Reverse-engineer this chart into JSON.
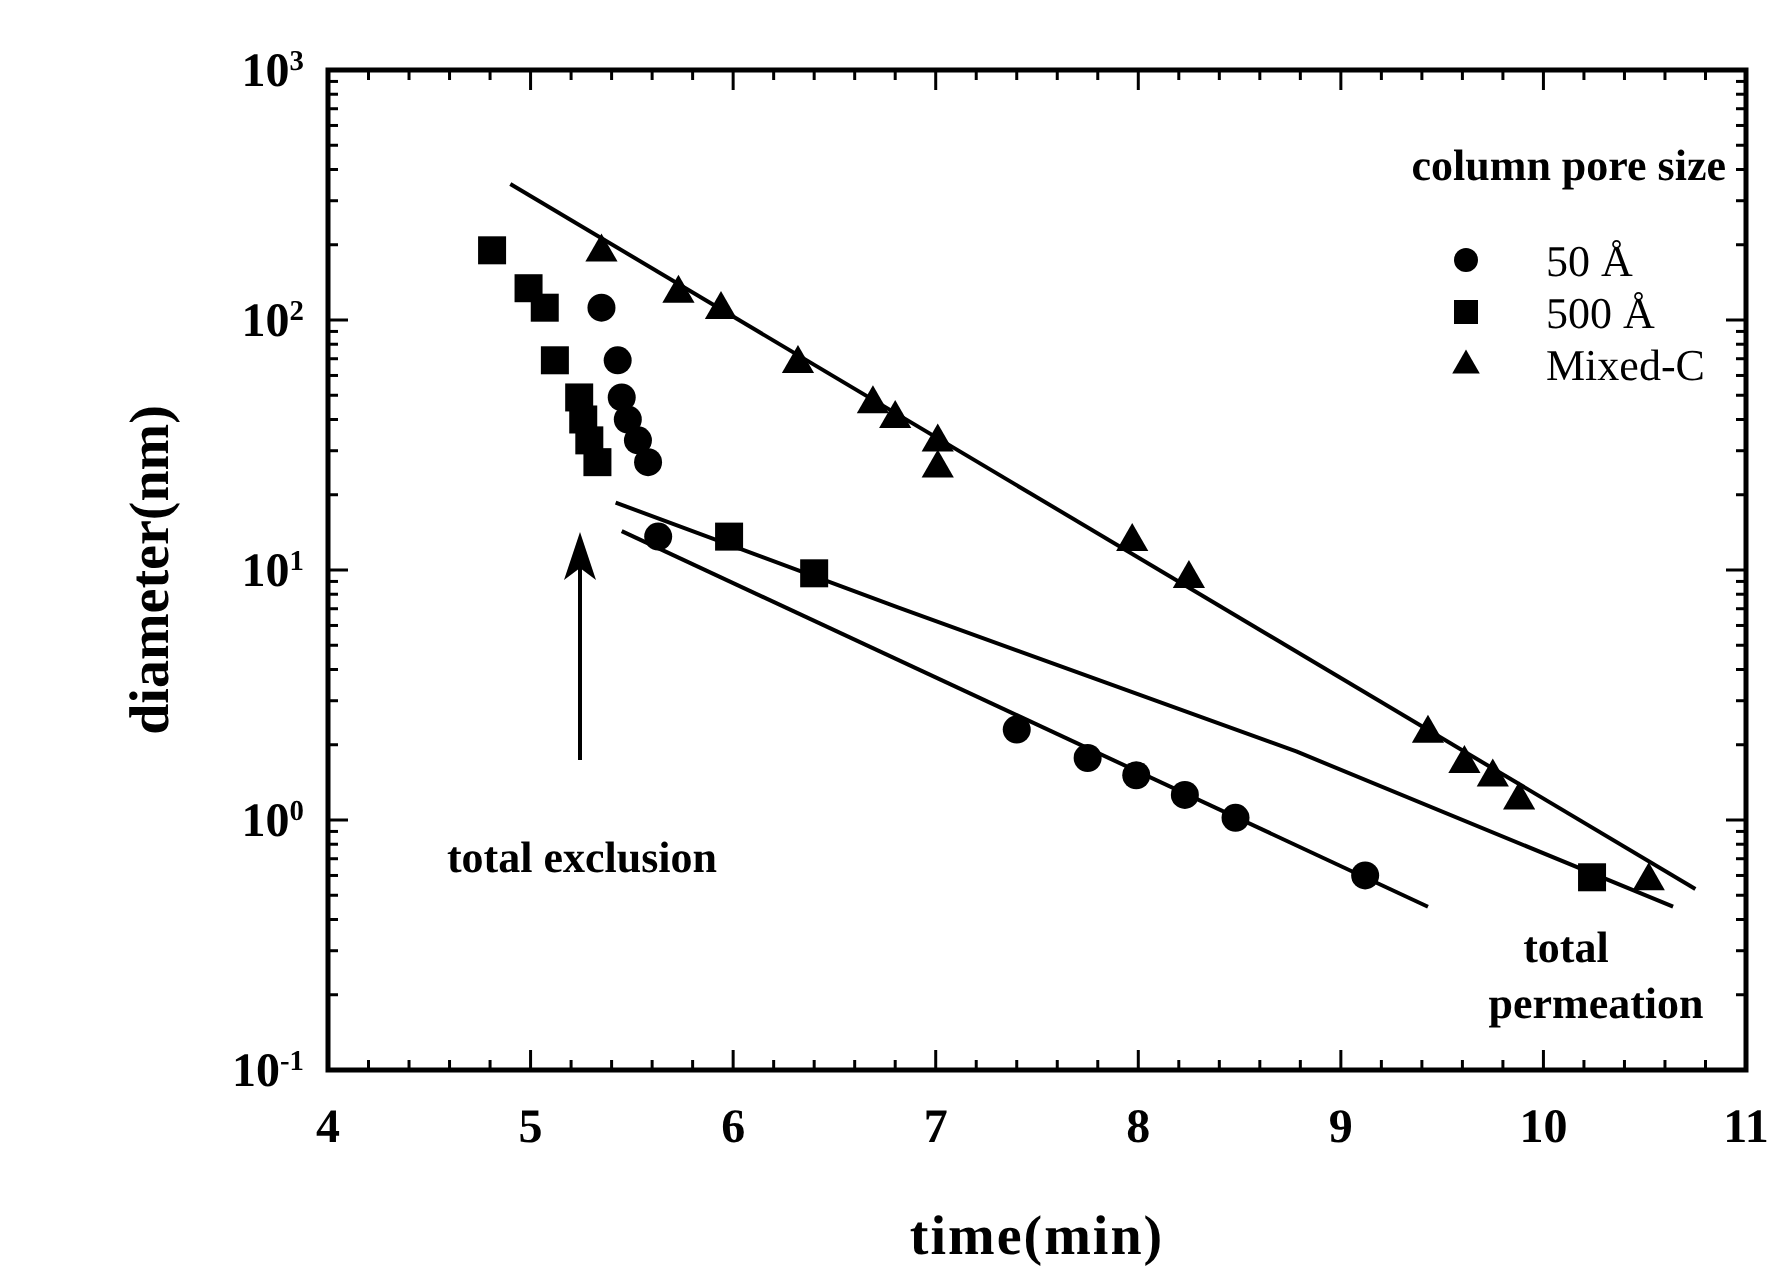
{
  "chart_data": {
    "type": "scatter",
    "xlabel": "time(min)",
    "ylabel": "diameter(nm)",
    "legend_title": "column pore size",
    "legend": "top right",
    "log": "y",
    "grid": false,
    "xlim": [
      4,
      11
    ],
    "xticks": [
      4,
      5,
      6,
      7,
      8,
      9,
      10,
      11
    ],
    "ylim": [
      0.1,
      1000
    ],
    "yticks": [
      {
        "value": 0.1,
        "label": "10$^{-1}$"
      },
      {
        "value": 1,
        "label": "10$^{0}$"
      },
      {
        "value": 10,
        "label": "10$^{1}$"
      },
      {
        "value": 100,
        "label": "10$^{2}$"
      },
      {
        "value": 1000,
        "label": "10$^{3}$"
      }
    ],
    "series": [
      {
        "name": "50 Å",
        "color": "#000000",
        "marker": "circle",
        "x": [
          5.35,
          5.43,
          5.45,
          5.48,
          5.53,
          5.58,
          5.63,
          7.4,
          7.75,
          7.99,
          8.23,
          8.48,
          9.12
        ],
        "values": [
          112,
          69,
          49,
          40,
          33,
          27,
          13.6,
          2.3,
          1.77,
          1.51,
          1.26,
          1.02,
          0.6
        ]
      },
      {
        "name": "500 Å",
        "color": "#000000",
        "marker": "square",
        "x": [
          4.81,
          4.99,
          5.07,
          5.12,
          5.24,
          5.26,
          5.29,
          5.33,
          5.98,
          6.4,
          10.24
        ],
        "values": [
          190,
          134,
          112,
          69,
          49,
          40,
          33,
          27,
          13.6,
          9.7,
          0.59
        ]
      },
      {
        "name": "Mixed-C",
        "color": "#000000",
        "marker": "triangle",
        "x": [
          5.35,
          5.73,
          5.94,
          6.32,
          6.69,
          6.8,
          7.01,
          7.01,
          7.97,
          8.25,
          9.43,
          9.61,
          9.75,
          9.88,
          10.52
        ],
        "values": [
          190,
          130,
          112,
          68,
          47,
          41,
          33,
          26,
          13.2,
          9.4,
          2.26,
          1.71,
          1.51,
          1.22,
          0.58
        ]
      },
      {
        "type": "line",
        "color": "#000000",
        "marker": "none",
        "line_style": "solid",
        "x": [
          4.9,
          10.75
        ],
        "values": [
          350,
          0.53
        ]
      },
      {
        "type": "line",
        "color": "#000000",
        "marker": "none",
        "line_style": "solid",
        "x": [
          5.42,
          6.81,
          8.78,
          10.64
        ],
        "values": [
          18.6,
          7.1,
          1.88,
          0.45
        ]
      },
      {
        "type": "line",
        "color": "#000000",
        "marker": "none",
        "line_style": "solid",
        "x": [
          5.45,
          9.43
        ],
        "values": [
          14.3,
          0.45
        ]
      }
    ],
    "annotations": [
      "total exclusion",
      "total permeation"
    ]
  }
}
